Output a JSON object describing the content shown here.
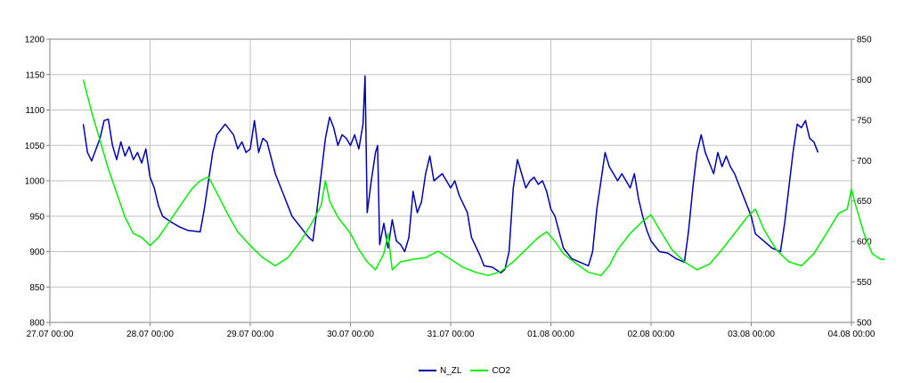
{
  "chart_data": {
    "type": "line",
    "title": "",
    "x_range": [
      "27.07 00:00",
      "04.08 00:00"
    ],
    "x_tick_labels": [
      "27.07 00:00",
      "28.07 00:00",
      "29.07 00:00",
      "30.07 00:00",
      "31.07 00:00",
      "01.08 00:00",
      "02.08 00:00",
      "03.08 00:00",
      "04.08 00:00"
    ],
    "y_left": {
      "range": [
        800,
        1200
      ],
      "ticks": [
        800,
        850,
        900,
        950,
        1000,
        1050,
        1100,
        1150,
        1200
      ],
      "tick_labels": [
        "800",
        "850",
        "900",
        "950",
        "1000",
        "1050",
        "1100",
        "1150",
        "1200"
      ]
    },
    "y_right": {
      "range": [
        500,
        850
      ],
      "ticks": [
        500,
        550,
        600,
        650,
        700,
        750,
        800,
        850
      ],
      "tick_labels": [
        "500",
        "550",
        "600",
        "650",
        "700",
        "750",
        "800",
        "850"
      ]
    },
    "grid": true,
    "legend_position": "bottom-center",
    "series": [
      {
        "name": "N_ZL",
        "axis": "left",
        "color": "#0000aa",
        "points": [
          [
            "27.07 08:00",
            1080
          ],
          [
            "27.07 09:00",
            1040
          ],
          [
            "27.07 10:00",
            1028
          ],
          [
            "27.07 12:00",
            1060
          ],
          [
            "27.07 13:00",
            1085
          ],
          [
            "27.07 14:00",
            1087
          ],
          [
            "27.07 15:00",
            1050
          ],
          [
            "27.07 16:00",
            1030
          ],
          [
            "27.07 17:00",
            1055
          ],
          [
            "27.07 18:00",
            1035
          ],
          [
            "27.07 19:00",
            1048
          ],
          [
            "27.07 20:00",
            1030
          ],
          [
            "27.07 21:00",
            1040
          ],
          [
            "27.07 22:00",
            1025
          ],
          [
            "27.07 23:00",
            1045
          ],
          [
            "28.07 00:00",
            1005
          ],
          [
            "28.07 01:00",
            990
          ],
          [
            "28.07 02:00",
            965
          ],
          [
            "28.07 03:00",
            950
          ],
          [
            "28.07 05:00",
            942
          ],
          [
            "28.07 07:00",
            935
          ],
          [
            "28.07 09:00",
            930
          ],
          [
            "28.07 12:00",
            928
          ],
          [
            "28.07 13:00",
            960
          ],
          [
            "28.07 14:00",
            1000
          ],
          [
            "28.07 15:00",
            1040
          ],
          [
            "28.07 16:00",
            1065
          ],
          [
            "28.07 18:00",
            1080
          ],
          [
            "28.07 20:00",
            1065
          ],
          [
            "28.07 21:00",
            1045
          ],
          [
            "28.07 22:00",
            1055
          ],
          [
            "28.07 23:00",
            1040
          ],
          [
            "29.07 00:00",
            1045
          ],
          [
            "29.07 01:00",
            1085
          ],
          [
            "29.07 02:00",
            1040
          ],
          [
            "29.07 03:00",
            1060
          ],
          [
            "29.07 04:00",
            1055
          ],
          [
            "29.07 06:00",
            1010
          ],
          [
            "29.07 08:00",
            980
          ],
          [
            "29.07 10:00",
            950
          ],
          [
            "29.07 12:00",
            935
          ],
          [
            "29.07 14:00",
            920
          ],
          [
            "29.07 15:00",
            915
          ],
          [
            "29.07 16:00",
            960
          ],
          [
            "29.07 17:00",
            1010
          ],
          [
            "29.07 18:00",
            1060
          ],
          [
            "29.07 19:00",
            1090
          ],
          [
            "29.07 20:00",
            1075
          ],
          [
            "29.07 21:00",
            1050
          ],
          [
            "29.07 22:00",
            1065
          ],
          [
            "29.07 23:00",
            1060
          ],
          [
            "30.07 00:00",
            1050
          ],
          [
            "30.07 01:00",
            1065
          ],
          [
            "30.07 02:00",
            1045
          ],
          [
            "30.07 03:00",
            1080
          ],
          [
            "30.07 03:30",
            1148
          ],
          [
            "30.07 04:00",
            955
          ],
          [
            "30.07 05:00",
            1000
          ],
          [
            "30.07 06:00",
            1040
          ],
          [
            "30.07 06:30",
            1050
          ],
          [
            "30.07 07:00",
            910
          ],
          [
            "30.07 08:00",
            940
          ],
          [
            "30.07 09:00",
            905
          ],
          [
            "30.07 10:00",
            945
          ],
          [
            "30.07 11:00",
            915
          ],
          [
            "30.07 12:00",
            910
          ],
          [
            "30.07 13:00",
            900
          ],
          [
            "30.07 14:00",
            920
          ],
          [
            "30.07 15:00",
            985
          ],
          [
            "30.07 16:00",
            955
          ],
          [
            "30.07 17:00",
            970
          ],
          [
            "30.07 18:00",
            1010
          ],
          [
            "30.07 19:00",
            1035
          ],
          [
            "30.07 20:00",
            1000
          ],
          [
            "30.07 22:00",
            1010
          ],
          [
            "31.07 00:00",
            990
          ],
          [
            "31.07 01:00",
            1000
          ],
          [
            "31.07 02:00",
            980
          ],
          [
            "31.07 04:00",
            955
          ],
          [
            "31.07 05:00",
            920
          ],
          [
            "31.07 07:00",
            895
          ],
          [
            "31.07 08:00",
            880
          ],
          [
            "31.07 10:00",
            878
          ],
          [
            "31.07 12:00",
            870
          ],
          [
            "31.07 13:00",
            875
          ],
          [
            "31.07 14:00",
            900
          ],
          [
            "31.07 15:00",
            990
          ],
          [
            "31.07 16:00",
            1030
          ],
          [
            "31.07 17:00",
            1010
          ],
          [
            "31.07 18:00",
            990
          ],
          [
            "31.07 19:00",
            1000
          ],
          [
            "31.07 20:00",
            1005
          ],
          [
            "31.07 21:00",
            995
          ],
          [
            "31.07 22:00",
            1000
          ],
          [
            "31.07 23:00",
            985
          ],
          [
            "01.08 00:00",
            960
          ],
          [
            "01.08 01:00",
            950
          ],
          [
            "01.08 03:00",
            905
          ],
          [
            "01.08 05:00",
            890
          ],
          [
            "01.08 07:00",
            885
          ],
          [
            "01.08 09:00",
            880
          ],
          [
            "01.08 10:00",
            900
          ],
          [
            "01.08 11:00",
            960
          ],
          [
            "01.08 12:00",
            1000
          ],
          [
            "01.08 13:00",
            1040
          ],
          [
            "01.08 14:00",
            1020
          ],
          [
            "01.08 15:00",
            1010
          ],
          [
            "01.08 16:00",
            1000
          ],
          [
            "01.08 17:00",
            1010
          ],
          [
            "01.08 18:00",
            1000
          ],
          [
            "01.08 19:00",
            990
          ],
          [
            "01.08 20:00",
            1010
          ],
          [
            "01.08 21:00",
            975
          ],
          [
            "01.08 22:00",
            950
          ],
          [
            "01.08 23:00",
            930
          ],
          [
            "02.08 00:00",
            915
          ],
          [
            "02.08 02:00",
            900
          ],
          [
            "02.08 04:00",
            898
          ],
          [
            "02.08 06:00",
            890
          ],
          [
            "02.08 08:00",
            885
          ],
          [
            "02.08 09:00",
            930
          ],
          [
            "02.08 10:00",
            990
          ],
          [
            "02.08 11:00",
            1040
          ],
          [
            "02.08 12:00",
            1065
          ],
          [
            "02.08 13:00",
            1040
          ],
          [
            "02.08 14:00",
            1025
          ],
          [
            "02.08 15:00",
            1010
          ],
          [
            "02.08 16:00",
            1040
          ],
          [
            "02.08 17:00",
            1020
          ],
          [
            "02.08 18:00",
            1035
          ],
          [
            "02.08 19:00",
            1020
          ],
          [
            "02.08 20:00",
            1010
          ],
          [
            "02.08 22:00",
            980
          ],
          [
            "03.08 00:00",
            950
          ],
          [
            "03.08 01:00",
            925
          ],
          [
            "03.08 03:00",
            915
          ],
          [
            "03.08 05:00",
            905
          ],
          [
            "03.08 07:00",
            900
          ],
          [
            "03.08 08:00",
            940
          ],
          [
            "03.08 09:00",
            990
          ],
          [
            "03.08 10:00",
            1040
          ],
          [
            "03.08 11:00",
            1080
          ],
          [
            "03.08 12:00",
            1075
          ],
          [
            "03.08 13:00",
            1085
          ],
          [
            "03.08 14:00",
            1060
          ],
          [
            "03.08 15:00",
            1055
          ],
          [
            "03.08 16:00",
            1040
          ]
        ]
      },
      {
        "name": "CO2",
        "axis": "right",
        "color": "#00ee00",
        "points": [
          [
            "27.07 08:00",
            800
          ],
          [
            "27.07 09:00",
            780
          ],
          [
            "27.07 10:00",
            760
          ],
          [
            "27.07 12:00",
            725
          ],
          [
            "27.07 14:00",
            690
          ],
          [
            "27.07 16:00",
            660
          ],
          [
            "27.07 18:00",
            630
          ],
          [
            "27.07 20:00",
            610
          ],
          [
            "27.07 22:00",
            605
          ],
          [
            "28.07 00:00",
            595
          ],
          [
            "28.07 02:00",
            605
          ],
          [
            "28.07 04:00",
            620
          ],
          [
            "28.07 06:00",
            635
          ],
          [
            "28.07 08:00",
            650
          ],
          [
            "28.07 10:00",
            665
          ],
          [
            "28.07 12:00",
            675
          ],
          [
            "28.07 14:00",
            680
          ],
          [
            "28.07 15:00",
            670
          ],
          [
            "28.07 17:00",
            650
          ],
          [
            "28.07 19:00",
            630
          ],
          [
            "28.07 21:00",
            612
          ],
          [
            "29.07 00:00",
            595
          ],
          [
            "29.07 03:00",
            580
          ],
          [
            "29.07 06:00",
            570
          ],
          [
            "29.07 09:00",
            580
          ],
          [
            "29.07 12:00",
            600
          ],
          [
            "29.07 15:00",
            625
          ],
          [
            "29.07 17:00",
            645
          ],
          [
            "29.07 18:00",
            675
          ],
          [
            "29.07 19:00",
            650
          ],
          [
            "29.07 21:00",
            630
          ],
          [
            "30.07 00:00",
            610
          ],
          [
            "30.07 02:00",
            590
          ],
          [
            "30.07 04:00",
            575
          ],
          [
            "30.07 06:00",
            565
          ],
          [
            "30.07 08:00",
            585
          ],
          [
            "30.07 09:00",
            610
          ],
          [
            "30.07 10:00",
            565
          ],
          [
            "30.07 12:00",
            575
          ],
          [
            "30.07 15:00",
            578
          ],
          [
            "30.07 18:00",
            580
          ],
          [
            "30.07 21:00",
            588
          ],
          [
            "31.07 00:00",
            578
          ],
          [
            "31.07 03:00",
            568
          ],
          [
            "31.07 06:00",
            562
          ],
          [
            "31.07 09:00",
            558
          ],
          [
            "31.07 12:00",
            563
          ],
          [
            "31.07 15:00",
            575
          ],
          [
            "31.07 18:00",
            590
          ],
          [
            "31.07 21:00",
            605
          ],
          [
            "31.07 23:00",
            612
          ],
          [
            "01.08 01:00",
            600
          ],
          [
            "01.08 03:00",
            585
          ],
          [
            "01.08 06:00",
            573
          ],
          [
            "01.08 09:00",
            562
          ],
          [
            "01.08 12:00",
            558
          ],
          [
            "01.08 14:00",
            570
          ],
          [
            "01.08 16:00",
            590
          ],
          [
            "01.08 19:00",
            610
          ],
          [
            "01.08 22:00",
            625
          ],
          [
            "02.08 00:00",
            633
          ],
          [
            "02.08 02:00",
            615
          ],
          [
            "02.08 05:00",
            590
          ],
          [
            "02.08 08:00",
            575
          ],
          [
            "02.08 11:00",
            565
          ],
          [
            "02.08 14:00",
            572
          ],
          [
            "02.08 17:00",
            590
          ],
          [
            "02.08 20:00",
            610
          ],
          [
            "02.08 23:00",
            630
          ],
          [
            "03.08 01:00",
            640
          ],
          [
            "03.08 03:00",
            615
          ],
          [
            "03.08 06:00",
            590
          ],
          [
            "03.08 09:00",
            575
          ],
          [
            "03.08 12:00",
            570
          ],
          [
            "03.08 15:00",
            585
          ],
          [
            "03.08 18:00",
            610
          ],
          [
            "03.08 21:00",
            635
          ],
          [
            "03.08 23:00",
            640
          ],
          [
            "04.08 00:00",
            665
          ],
          [
            "04.08 01:00",
            645
          ],
          [
            "04.08 03:00",
            610
          ],
          [
            "04.08 05:00",
            585
          ],
          [
            "04.08 07:00",
            578
          ],
          [
            "04.08 08:00",
            578
          ]
        ]
      }
    ]
  }
}
